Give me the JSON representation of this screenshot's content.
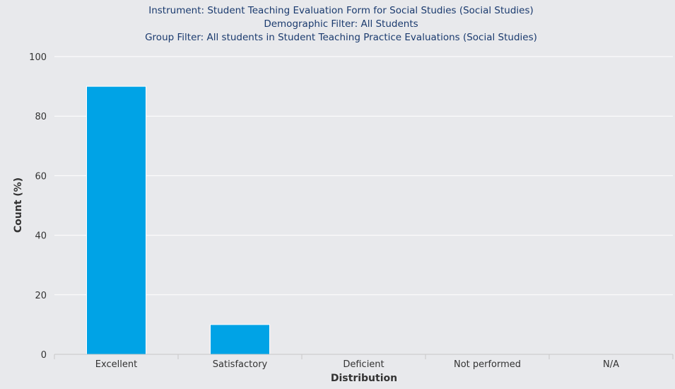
{
  "chart_data": {
    "type": "bar",
    "title_lines": [
      "Instrument: Student Teaching Evaluation Form for Social Studies (Social Studies)",
      "Demographic Filter: All Students",
      "Group Filter: All students in Student Teaching Practice Evaluations (Social Studies)"
    ],
    "categories": [
      "Excellent",
      "Satisfactory",
      "Deficient",
      "Not performed",
      "N/A"
    ],
    "values": [
      90,
      10,
      0,
      0,
      0
    ],
    "xlabel": "Distribution",
    "ylabel": "Count (%)",
    "ylim": [
      0,
      100
    ],
    "yticks": [
      0,
      20,
      40,
      60,
      80,
      100
    ],
    "grid": true,
    "bar_color": "#00a3e6"
  }
}
